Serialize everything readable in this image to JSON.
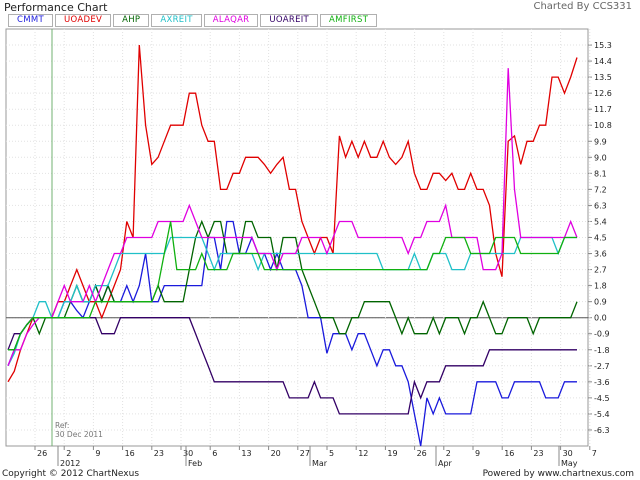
{
  "header": {
    "title": "Performance Chart",
    "charted_by": "Charted By CCS331"
  },
  "legend": [
    {
      "name": "CMMT",
      "color": "#1a1adc"
    },
    {
      "name": "UOADEV",
      "color": "#e00000"
    },
    {
      "name": "AHP",
      "color": "#006400"
    },
    {
      "name": "AXREIT",
      "color": "#20c0c8"
    },
    {
      "name": "ALAQAR",
      "color": "#e000e0"
    },
    {
      "name": "UOAREIT",
      "color": "#330066"
    },
    {
      "name": "AMFIRST",
      "color": "#10b010"
    }
  ],
  "footer": {
    "copyright": "Copyright © 2012 ChartNexus",
    "powered": "Powered by www.chartnexus.com"
  },
  "chart_data": {
    "type": "line",
    "title": "Performance Chart",
    "ref_label": [
      "Ref:",
      "30 Dec 2011"
    ],
    "ylim": [
      -7.2,
      16.2
    ],
    "y_ticks": [
      15.3,
      14.4,
      13.5,
      12.6,
      11.7,
      10.8,
      9.9,
      9.0,
      8.1,
      7.2,
      6.3,
      5.4,
      4.5,
      3.6,
      2.7,
      1.8,
      0.9,
      0.0,
      -0.9,
      -1.8,
      -2.7,
      -3.6,
      -4.5,
      -5.4,
      -6.3
    ],
    "y_tick_labels": [
      "15.3",
      "14.4",
      "13.5",
      "12.6",
      "11.7",
      "10.8",
      "9.9",
      "9.0",
      "8.1",
      "7.2",
      "6.3",
      "5.4",
      "4.5",
      "3.6",
      "2.7",
      "1.8",
      "0.9",
      "0.0",
      "-0.9",
      "-1.8",
      "-2.7",
      "-3.6",
      "-4.5",
      "-5.4",
      "-6.3"
    ],
    "x_day_ticks": [
      "26",
      "2",
      "9",
      "16",
      "23",
      "30",
      "6",
      "13",
      "20",
      "27",
      "5",
      "12",
      "19",
      "26",
      "2",
      "9",
      "16",
      "23",
      "30",
      "7"
    ],
    "x_month_labels": [
      "2012",
      "Feb",
      "Mar",
      "Apr",
      "May"
    ],
    "n_points": 92,
    "series": [
      {
        "name": "UOADEV",
        "color": "#e00000",
        "values": [
          -3.6,
          -3.0,
          -1.8,
          -0.9,
          0.0,
          0.0,
          0.0,
          0.0,
          0.9,
          0.9,
          1.8,
          2.7,
          1.8,
          0.9,
          0.9,
          0.0,
          0.9,
          1.8,
          2.7,
          5.4,
          4.5,
          15.3,
          10.8,
          8.6,
          9.0,
          9.9,
          10.8,
          10.8,
          10.8,
          12.6,
          12.6,
          10.8,
          9.9,
          9.9,
          7.2,
          7.2,
          8.1,
          8.1,
          9.0,
          9.0,
          9.0,
          8.6,
          8.1,
          8.6,
          9.0,
          7.2,
          7.2,
          5.4,
          4.5,
          3.6,
          4.5,
          4.5,
          3.6,
          10.2,
          9.0,
          9.9,
          9.0,
          9.9,
          9.0,
          9.0,
          9.9,
          9.0,
          8.6,
          9.0,
          9.9,
          8.1,
          7.2,
          7.2,
          8.1,
          8.1,
          7.7,
          8.1,
          7.2,
          7.2,
          8.1,
          7.2,
          7.2,
          6.3,
          3.6,
          2.3,
          9.9,
          10.2,
          8.6,
          9.9,
          9.9,
          10.8,
          10.8,
          13.5,
          13.5,
          12.6,
          13.5,
          14.6
        ]
      },
      {
        "name": "CMMT",
        "color": "#1a1adc",
        "values": [
          -2.7,
          -1.8,
          -0.9,
          -0.4,
          0.0,
          0.0,
          0.0,
          0.0,
          0.0,
          0.9,
          0.9,
          0.4,
          0.0,
          0.9,
          1.8,
          0.9,
          1.8,
          0.9,
          0.9,
          1.8,
          0.9,
          1.8,
          3.6,
          0.9,
          0.9,
          1.8,
          1.8,
          1.8,
          1.8,
          1.8,
          1.8,
          1.8,
          4.5,
          4.5,
          2.7,
          5.4,
          5.4,
          3.6,
          3.6,
          4.5,
          3.6,
          3.6,
          2.7,
          3.6,
          2.7,
          2.7,
          2.7,
          1.8,
          0.0,
          0.0,
          0.0,
          -2.0,
          -0.9,
          -0.9,
          -0.9,
          -1.8,
          -0.9,
          -0.9,
          -1.8,
          -2.7,
          -1.8,
          -1.8,
          -2.7,
          -2.7,
          -3.6,
          -5.4,
          -7.2,
          -4.5,
          -5.4,
          -4.5,
          -5.4,
          -5.4,
          -5.4,
          -5.4,
          -5.4,
          -3.6,
          -3.6,
          -3.6,
          -3.6,
          -4.5,
          -4.5,
          -3.6,
          -3.6,
          -3.6,
          -3.6,
          -3.6,
          -4.5,
          -4.5,
          -4.5,
          -3.6,
          -3.6,
          -3.6
        ]
      },
      {
        "name": "AHP",
        "color": "#006400",
        "values": [
          -1.8,
          -1.8,
          -0.9,
          -0.4,
          0.0,
          -0.9,
          0.0,
          0.0,
          0.0,
          0.0,
          0.9,
          1.8,
          0.9,
          0.9,
          1.8,
          0.9,
          1.8,
          0.9,
          0.9,
          0.9,
          0.9,
          0.9,
          0.9,
          0.9,
          1.8,
          0.9,
          0.9,
          0.9,
          0.9,
          2.7,
          4.5,
          5.4,
          4.5,
          5.4,
          5.4,
          3.6,
          3.6,
          3.6,
          5.4,
          5.4,
          4.5,
          4.5,
          4.5,
          2.7,
          4.5,
          4.5,
          4.5,
          2.7,
          1.8,
          0.9,
          0.0,
          0.0,
          0.0,
          -0.9,
          -0.9,
          0.0,
          0.0,
          0.9,
          0.9,
          0.9,
          0.9,
          0.9,
          0.0,
          -0.9,
          0.0,
          -0.9,
          -0.9,
          -0.9,
          0.0,
          -0.9,
          0.0,
          0.0,
          0.0,
          -0.9,
          0.0,
          0.0,
          0.9,
          0.0,
          -0.9,
          -0.9,
          0.0,
          0.0,
          0.0,
          0.0,
          -0.9,
          0.0,
          0.0,
          0.0,
          0.0,
          0.0,
          0.0,
          0.9
        ]
      },
      {
        "name": "AXREIT",
        "color": "#20c0c8",
        "values": [
          -2.7,
          -2.0,
          -0.9,
          -0.4,
          0.0,
          0.9,
          0.9,
          0.0,
          0.0,
          0.9,
          0.9,
          1.8,
          0.9,
          0.9,
          1.8,
          1.8,
          1.8,
          2.7,
          3.6,
          3.6,
          3.6,
          3.6,
          3.6,
          3.6,
          3.6,
          3.6,
          4.5,
          4.5,
          4.5,
          4.5,
          4.5,
          4.5,
          3.6,
          2.7,
          3.6,
          3.6,
          3.6,
          3.6,
          3.6,
          3.6,
          2.7,
          3.6,
          3.6,
          3.6,
          3.6,
          3.6,
          3.6,
          3.6,
          3.6,
          3.6,
          3.6,
          3.6,
          3.6,
          3.6,
          3.6,
          3.6,
          3.6,
          3.6,
          3.6,
          3.6,
          2.7,
          2.7,
          2.7,
          2.7,
          2.7,
          3.6,
          2.7,
          2.7,
          3.6,
          3.6,
          3.6,
          2.7,
          2.7,
          2.7,
          3.6,
          3.6,
          3.6,
          3.6,
          3.6,
          3.6,
          3.6,
          3.6,
          4.5,
          4.5,
          4.5,
          4.5,
          4.5,
          4.5,
          3.6,
          4.5,
          4.5,
          4.5
        ]
      },
      {
        "name": "ALAQAR",
        "color": "#e000e0",
        "values": [
          -2.7,
          -1.8,
          -1.8,
          -0.9,
          -0.4,
          0.0,
          0.0,
          0.0,
          0.9,
          1.8,
          0.9,
          0.9,
          0.9,
          1.8,
          0.9,
          1.8,
          2.7,
          3.6,
          3.6,
          4.5,
          4.5,
          4.5,
          4.5,
          4.5,
          5.4,
          5.4,
          5.4,
          5.4,
          5.4,
          6.3,
          5.4,
          4.5,
          4.5,
          4.5,
          4.5,
          4.5,
          4.5,
          4.5,
          4.5,
          4.5,
          3.6,
          3.6,
          3.6,
          2.7,
          3.6,
          3.6,
          3.6,
          4.5,
          4.5,
          4.5,
          4.5,
          3.6,
          4.5,
          5.4,
          5.4,
          5.4,
          4.5,
          4.5,
          4.5,
          4.5,
          4.5,
          4.5,
          4.5,
          4.5,
          3.6,
          4.5,
          4.5,
          5.4,
          5.4,
          5.4,
          6.3,
          4.5,
          4.5,
          4.5,
          4.5,
          4.5,
          2.7,
          2.7,
          2.7,
          3.6,
          14.0,
          7.2,
          4.5,
          4.5,
          4.5,
          4.5,
          4.5,
          4.5,
          4.5,
          4.5,
          5.4,
          4.5
        ]
      },
      {
        "name": "UOAREIT",
        "color": "#330066",
        "values": [
          -1.8,
          -0.9,
          -0.9,
          -0.4,
          0.0,
          0.0,
          0.0,
          0.0,
          0.0,
          0.0,
          0.0,
          0.0,
          0.0,
          0.0,
          0.0,
          -0.9,
          -0.9,
          -0.9,
          0.0,
          0.0,
          0.0,
          0.0,
          0.0,
          0.0,
          0.0,
          0.0,
          0.0,
          0.0,
          0.0,
          0.0,
          -0.9,
          -1.8,
          -2.7,
          -3.6,
          -3.6,
          -3.6,
          -3.6,
          -3.6,
          -3.6,
          -3.6,
          -3.6,
          -3.6,
          -3.6,
          -3.6,
          -3.6,
          -4.5,
          -4.5,
          -4.5,
          -4.5,
          -3.6,
          -4.5,
          -4.5,
          -4.5,
          -5.4,
          -5.4,
          -5.4,
          -5.4,
          -5.4,
          -5.4,
          -5.4,
          -5.4,
          -5.4,
          -5.4,
          -5.4,
          -5.4,
          -3.6,
          -4.5,
          -3.6,
          -3.6,
          -3.6,
          -2.7,
          -2.7,
          -2.7,
          -2.7,
          -2.7,
          -2.7,
          -2.7,
          -1.8,
          -1.8,
          -1.8,
          -1.8,
          -1.8,
          -1.8,
          -1.8,
          -1.8,
          -1.8,
          -1.8,
          -1.8,
          -1.8,
          -1.8,
          -1.8,
          -1.8
        ]
      },
      {
        "name": "AMFIRST",
        "color": "#10b010",
        "values": [
          -1.8,
          -1.8,
          -0.9,
          -0.4,
          0.0,
          0.0,
          0.0,
          0.0,
          0.0,
          0.0,
          0.0,
          0.0,
          0.0,
          0.0,
          0.9,
          0.9,
          0.9,
          0.9,
          0.9,
          0.9,
          0.9,
          0.9,
          0.9,
          0.9,
          1.8,
          3.6,
          5.4,
          2.7,
          2.7,
          2.7,
          2.7,
          3.6,
          2.7,
          2.7,
          2.7,
          2.7,
          3.6,
          3.6,
          3.6,
          3.6,
          3.6,
          2.7,
          2.7,
          2.7,
          2.7,
          2.7,
          2.7,
          2.7,
          2.7,
          2.7,
          2.7,
          2.7,
          2.7,
          2.7,
          2.7,
          2.7,
          2.7,
          2.7,
          2.7,
          2.7,
          2.7,
          2.7,
          2.7,
          2.7,
          2.7,
          2.7,
          2.7,
          2.7,
          3.6,
          3.6,
          4.5,
          4.5,
          4.5,
          4.5,
          3.6,
          3.6,
          3.6,
          3.6,
          4.5,
          4.5,
          4.5,
          4.5,
          3.6,
          3.6,
          3.6,
          3.6,
          3.6,
          3.6,
          3.6,
          4.5,
          4.5,
          4.5
        ]
      }
    ]
  }
}
